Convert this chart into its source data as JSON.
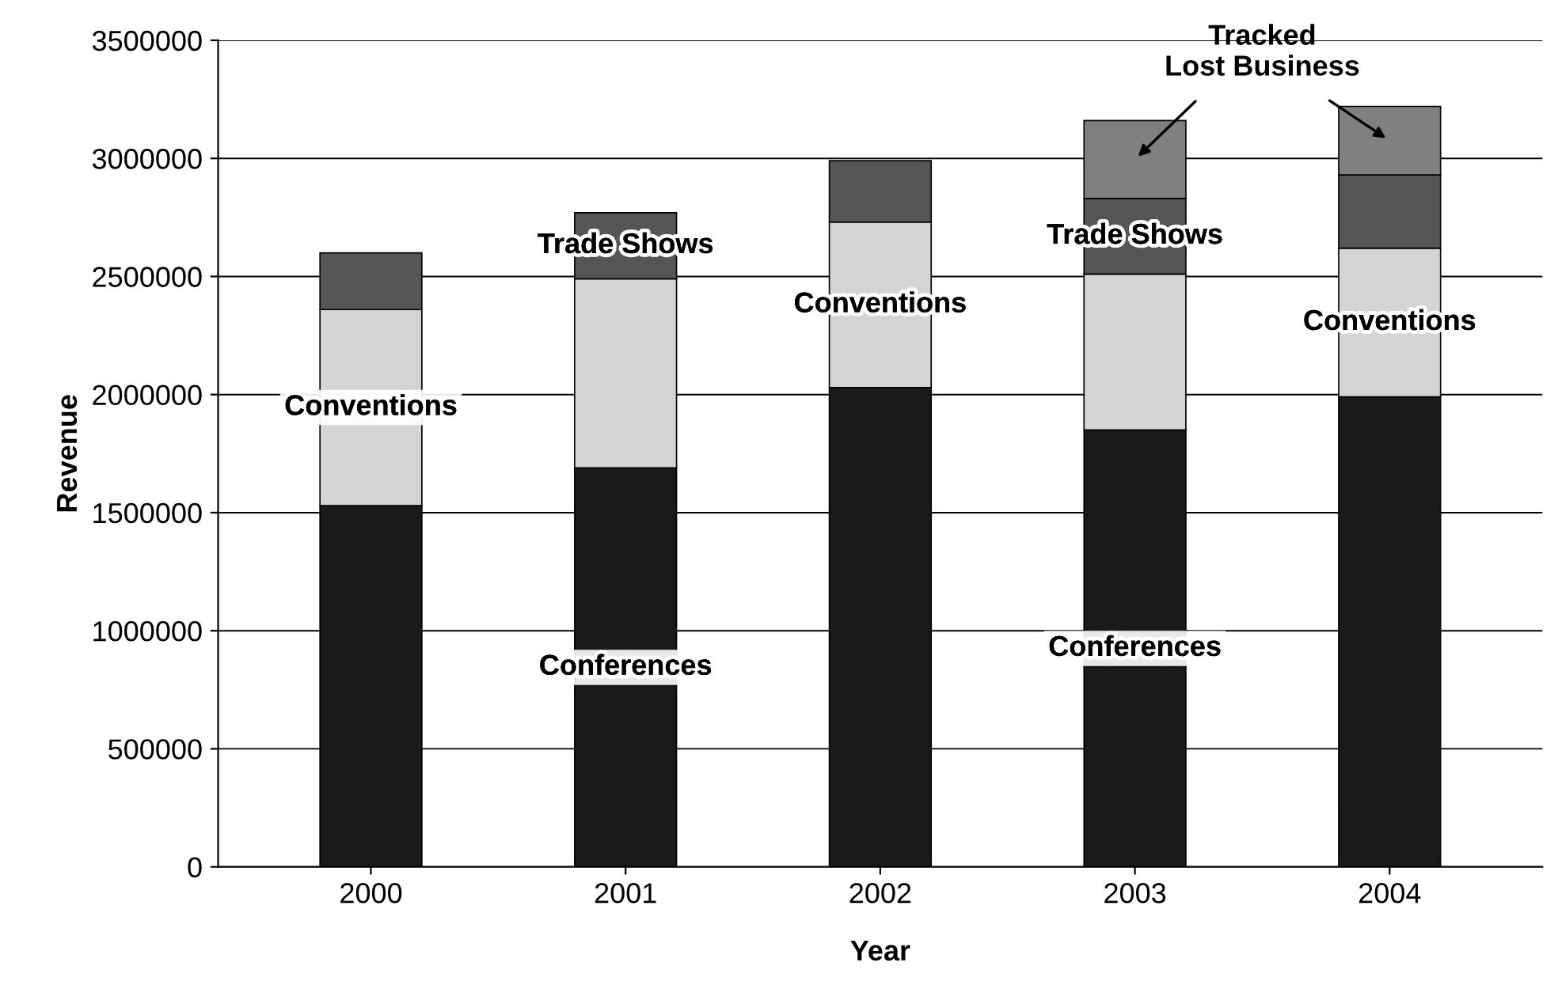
{
  "chart_data": {
    "type": "bar",
    "stacked": true,
    "xlabel": "Year",
    "ylabel": "Revenue",
    "categories": [
      "2000",
      "2001",
      "2002",
      "2003",
      "2004"
    ],
    "series": [
      {
        "name": "Conferences",
        "color": "#1a1a1a",
        "values": [
          1530000,
          1690000,
          2030000,
          1850000,
          1990000
        ]
      },
      {
        "name": "Conventions",
        "color": "#d4d4d4",
        "values": [
          830000,
          800000,
          700000,
          660000,
          630000
        ]
      },
      {
        "name": "Trade Shows",
        "color": "#555555",
        "values": [
          240000,
          280000,
          260000,
          320000,
          310000
        ]
      },
      {
        "name": "Tracked\nLost Business",
        "color": "#808080",
        "values": [
          null,
          null,
          null,
          330000,
          290000
        ]
      }
    ],
    "ylim": [
      0,
      3500000
    ],
    "yticks": [
      0,
      500000,
      1000000,
      1500000,
      2000000,
      2500000,
      3000000,
      3500000
    ],
    "grid": "y",
    "legend": false
  }
}
